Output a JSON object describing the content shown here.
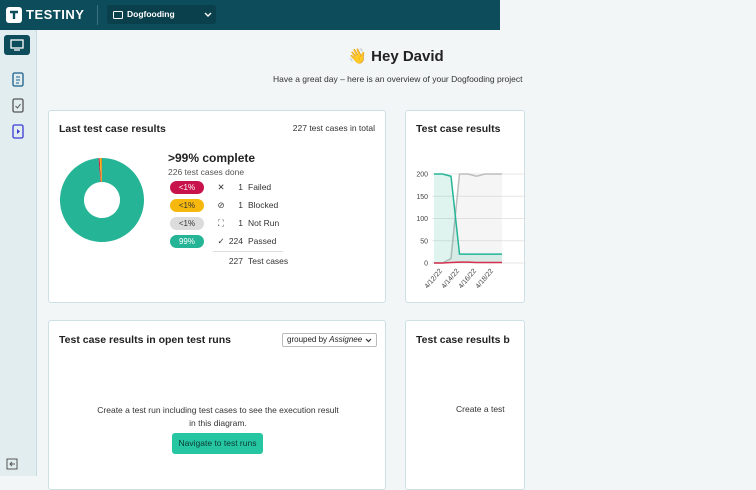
{
  "topbar": {
    "logo": "TESTINY",
    "project": "Dogfooding"
  },
  "header": {
    "emoji": "👋",
    "greeting": "Hey David",
    "subtitle": "Have a great day – here is an overview of your Dogfooding project"
  },
  "last_results": {
    "title": "Last test case results",
    "total": "227 test cases in total",
    "complete": ">99% complete",
    "done": "226 test cases done",
    "rows": [
      {
        "badge": "<1%",
        "icon": "✕",
        "count": 1,
        "label": "Failed",
        "color": "#c8124b",
        "text_color": "#ffffff"
      },
      {
        "badge": "<1%",
        "icon": "⊘",
        "count": 1,
        "label": "Blocked",
        "color": "#f6b80c",
        "text_color": "#333333"
      },
      {
        "badge": "<1%",
        "icon": "⛶",
        "count": 1,
        "label": "Not Run",
        "color": "#dcdcdc",
        "text_color": "#333333"
      },
      {
        "badge": "99%",
        "icon": "✓",
        "count": 224,
        "label": "Passed",
        "color": "#25b596",
        "text_color": "#ffffff"
      }
    ],
    "sum": {
      "count": 227,
      "label": "Test cases"
    }
  },
  "trend": {
    "title": "Test case results",
    "chart_data": {
      "type": "line",
      "categories": [
        null,
        "4/12/22",
        null,
        "4/14/22",
        null,
        "4/16/22",
        null,
        "4/18/22",
        null
      ],
      "series": [
        {
          "color": "#bdbdbd",
          "values": [
            0,
            0,
            10,
            200,
            200,
            195,
            200,
            200,
            200
          ]
        },
        {
          "color": "#25b596",
          "values": [
            200,
            200,
            195,
            20,
            20,
            20,
            20,
            20,
            20
          ]
        },
        {
          "color": "#d6304f",
          "values": [
            0,
            0,
            1,
            2,
            2,
            1,
            1,
            1,
            1
          ]
        }
      ],
      "ylim": [
        0,
        200
      ],
      "yticks": [
        0,
        50,
        100,
        150,
        200
      ],
      "grid": true
    }
  },
  "open_runs": {
    "title": "Test case results in open test runs",
    "group_prefix": "grouped by",
    "group_value": "Assignee",
    "empty_text": "Create a test run including test cases to see the execution result in this diagram.",
    "button": "Navigate to test runs"
  },
  "other_card": {
    "title": "Test case results b",
    "empty_text": "Create a test"
  }
}
